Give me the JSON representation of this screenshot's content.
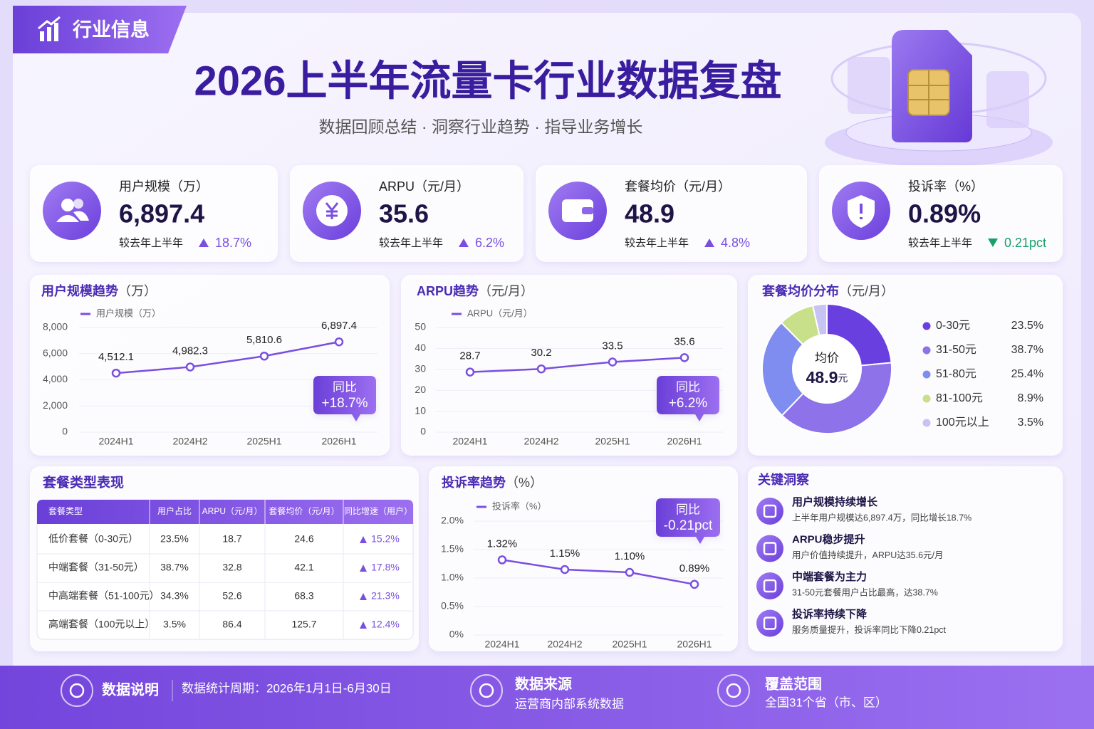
{
  "header": {
    "badge": "行业信息",
    "title": "2026上半年流量卡行业数据复盘",
    "subtitle": "数据回顾总结 · 洞察行业趋势 · 指导业务增长"
  },
  "kpis": [
    {
      "label": "用户规模（万）",
      "value": "6,897.4",
      "compare": "较去年上半年",
      "change": "18.7%",
      "direction": "up"
    },
    {
      "label": "ARPU（元/月）",
      "value": "35.6",
      "compare": "较去年上半年",
      "change": "6.2%",
      "direction": "up"
    },
    {
      "label": "套餐均价（元/月）",
      "value": "48.9",
      "compare": "较去年上半年",
      "change": "4.8%",
      "direction": "up"
    },
    {
      "label": "投诉率（%）",
      "value": "0.89%",
      "compare": "较去年上半年",
      "change": "0.21pct",
      "direction": "down"
    }
  ],
  "chart_data": [
    {
      "type": "line",
      "title": "用户规模趋势",
      "title_unit": "（万）",
      "categories": [
        "2024H1",
        "2024H2",
        "2025H1",
        "2026H1"
      ],
      "series": [
        {
          "name": "用户规模（万）",
          "color": "#7a4fe0",
          "values": [
            4512.1,
            4982.3,
            5810.6,
            6897.4
          ],
          "value_labels": [
            "4,512.1",
            "4,982.3",
            "5,810.6",
            "6,897.4"
          ]
        }
      ],
      "ylim": [
        0,
        8000
      ],
      "yticks": [
        0,
        {
          "value": 2000,
          "label": "2,000"
        },
        {
          "value": 4000,
          "label": "4,000"
        },
        {
          "value": 6000,
          "label": "6,000"
        },
        {
          "value": 8000,
          "label": "8,000"
        }
      ],
      "callout": {
        "label": "同比",
        "value": "+18.7%"
      }
    },
    {
      "type": "line",
      "title": "ARPU趋势",
      "title_unit": "（元/月）",
      "categories": [
        "2024H1",
        "2024H2",
        "2025H1",
        "2026H1"
      ],
      "series": [
        {
          "name": "ARPU（元/月）",
          "color": "#7a4fe0",
          "values": [
            28.7,
            30.2,
            33.5,
            35.6
          ]
        }
      ],
      "ylim": [
        0,
        50
      ],
      "yticks": [
        0,
        10,
        20,
        30,
        40,
        50
      ],
      "callout": {
        "label": "同比",
        "value": "+6.2%"
      }
    },
    {
      "type": "pie",
      "title": "套餐均价分布",
      "title_unit": "（元/月）",
      "center_label": "均价",
      "center_value": "48.9",
      "center_unit": "元",
      "categories": [
        "0-30元",
        "31-50元",
        "51-80元",
        "81-100元",
        "100元以上"
      ],
      "values": [
        23.5,
        38.7,
        25.4,
        8.9,
        3.5
      ],
      "value_labels": [
        "23.5%",
        "38.7%",
        "25.4%",
        "8.9%",
        "3.5%"
      ],
      "colors": [
        "#6a3fe0",
        "#8d72ea",
        "#7f8cf0",
        "#c9e08a",
        "#c7c3f3"
      ]
    },
    {
      "type": "line",
      "title": "投诉率趋势",
      "title_unit": "（%）",
      "categories": [
        "2024H1",
        "2024H2",
        "2025H1",
        "2026H1"
      ],
      "series": [
        {
          "name": "投诉率（%）",
          "color": "#7a4fe0",
          "values": [
            1.32,
            1.15,
            1.1,
            0.89
          ],
          "value_labels": [
            "1.32%",
            "1.15%",
            "1.10%",
            "0.89%"
          ]
        }
      ],
      "ylim": [
        0,
        2
      ],
      "yticks": [
        {
          "value": 0,
          "label": "0%"
        },
        {
          "value": 0.5,
          "label": "0.5%"
        },
        {
          "value": 1,
          "label": "1.0%"
        },
        {
          "value": 1.5,
          "label": "1.5%"
        },
        {
          "value": 2,
          "label": "2.0%"
        }
      ],
      "callout": {
        "label": "同比",
        "value": "-0.21pct"
      }
    }
  ],
  "table": {
    "title": "套餐类型表现",
    "header": [
      "套餐类型",
      "用户占比",
      "ARPU（元/月）",
      "套餐均价（元/月）",
      "同比增速（用户）"
    ],
    "rows": [
      [
        "低价套餐（0-30元）",
        "23.5%",
        "18.7",
        "24.6",
        "15.2%"
      ],
      [
        "中端套餐（31-50元）",
        "38.7%",
        "32.8",
        "42.1",
        "17.8%"
      ],
      [
        "中高端套餐（51-100元）",
        "34.3%",
        "52.6",
        "68.3",
        "21.3%"
      ],
      [
        "高端套餐（100元以上）",
        "3.5%",
        "86.4",
        "125.7",
        "12.4%"
      ]
    ]
  },
  "insights": {
    "title": "关键洞察",
    "items": [
      {
        "title": "用户规模持续增长",
        "text": "上半年用户规模达6,897.4万，同比增长18.7%"
      },
      {
        "title": "ARPU稳步提升",
        "text": "用户价值持续提升，ARPU达35.6元/月"
      },
      {
        "title": "中端套餐为主力",
        "text": "31-50元套餐用户占比最高，达38.7%"
      },
      {
        "title": "投诉率持续下降",
        "text": "服务质量提升，投诉率同比下降0.21pct"
      }
    ]
  },
  "footer": [
    {
      "title": "数据说明",
      "text": "数据统计周期：2026年1月1日-6月30日"
    },
    {
      "title": "数据来源",
      "text": "运营商内部系统数据"
    },
    {
      "title": "覆盖范围",
      "text": "全国31个省（市、区）"
    }
  ]
}
